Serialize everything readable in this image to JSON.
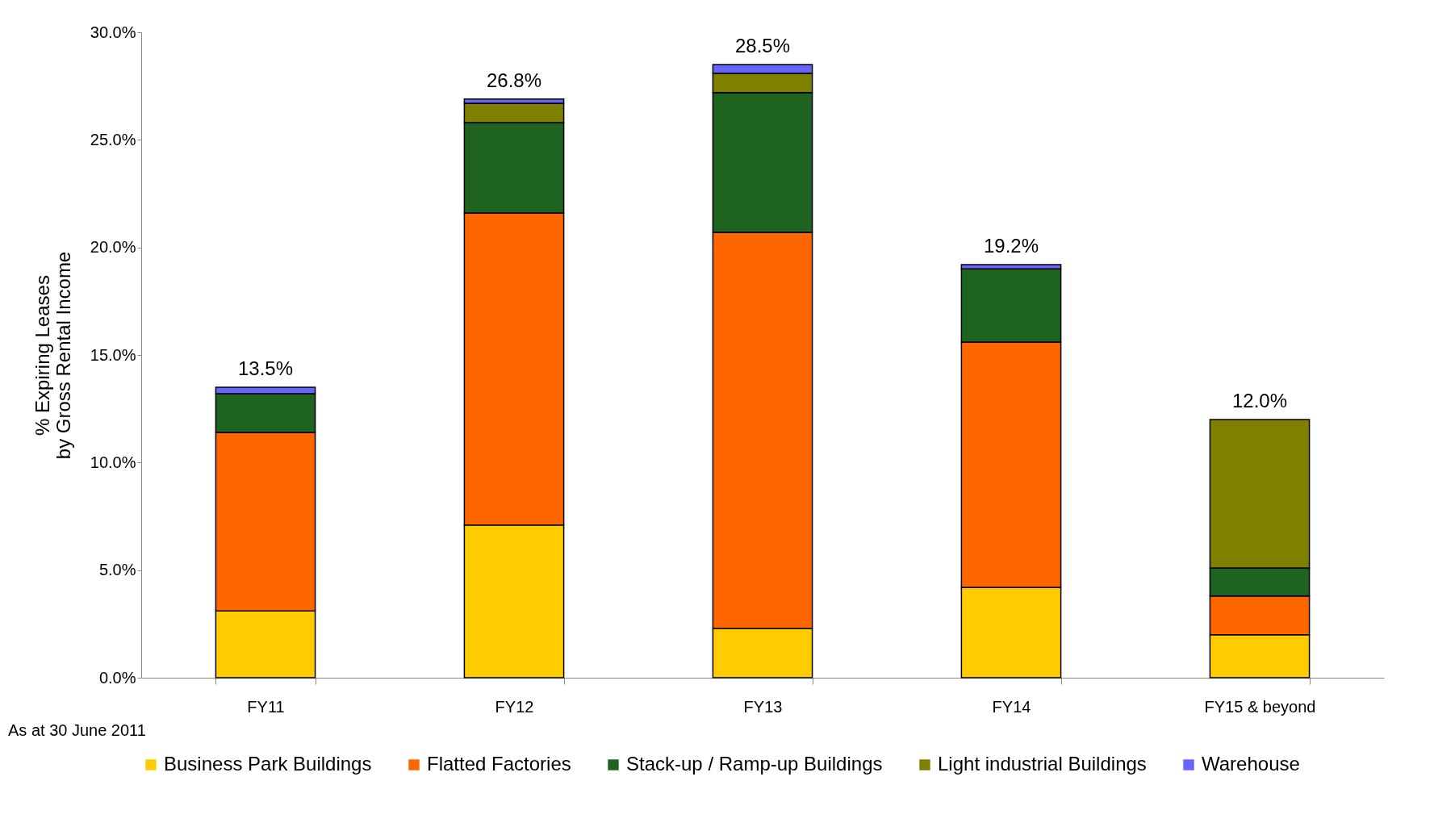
{
  "chart_data": {
    "type": "bar",
    "stacked": true,
    "ylabel": "% Expiring Leases\nby Gross Rental Income",
    "categories": [
      "FY11",
      "FY12",
      "FY13",
      "FY14",
      "FY15 & beyond"
    ],
    "series": [
      {
        "name": "Business Park Buildings",
        "color": "#ffcc00",
        "values": [
          3.1,
          7.1,
          2.3,
          4.2,
          2.0
        ]
      },
      {
        "name": "Flatted Factories",
        "color": "#ff6600",
        "values": [
          8.3,
          14.5,
          18.4,
          11.4,
          1.8
        ]
      },
      {
        "name": "Stack-up / Ramp-up Buildings",
        "color": "#1e6320",
        "values": [
          1.8,
          4.2,
          6.5,
          3.4,
          1.3
        ]
      },
      {
        "name": "Light industrial Buildings",
        "color": "#808000",
        "values": [
          null,
          0.9,
          0.9,
          null,
          6.9
        ]
      },
      {
        "name": "Warehouse",
        "color": "#6666ff",
        "values": [
          0.3,
          0.2,
          0.4,
          0.2,
          null
        ]
      }
    ],
    "totals": [
      "13.5%",
      "26.8%",
      "28.5%",
      "19.2%",
      "12.0%"
    ],
    "ylim": [
      0,
      30
    ],
    "yticks": [
      {
        "value": 0,
        "label": "0.0%"
      },
      {
        "value": 5,
        "label": "5.0%"
      },
      {
        "value": 10,
        "label": "10.0%"
      },
      {
        "value": 15,
        "label": "15.0%"
      },
      {
        "value": 20,
        "label": "20.0%"
      },
      {
        "value": 25,
        "label": "25.0%"
      },
      {
        "value": 30,
        "label": "30.0%"
      }
    ],
    "grid": false,
    "legend": "bottom",
    "annotations": [
      "As at 30 June 2011"
    ]
  }
}
